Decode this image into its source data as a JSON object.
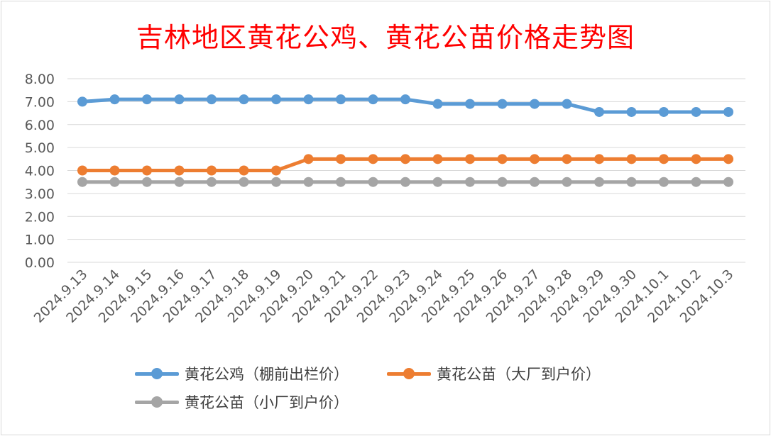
{
  "chart_data": {
    "type": "line",
    "title": "吉林地区黄花公鸡、黄花公苗价格走势图",
    "categories": [
      "2024.9.13",
      "2024.9.14",
      "2024.9.15",
      "2024.9.16",
      "2024.9.17",
      "2024.9.18",
      "2024.9.19",
      "2024.9.20",
      "2024.9.21",
      "2024.9.22",
      "2024.9.23",
      "2024.9.24",
      "2024.9.25",
      "2024.9.26",
      "2024.9.27",
      "2024.9.28",
      "2024.9.29",
      "2024.9.30",
      "2024.10.1",
      "2024.10.2",
      "2024.10.3"
    ],
    "yticks": [
      "0.00",
      "1.00",
      "2.00",
      "3.00",
      "4.00",
      "5.00",
      "6.00",
      "7.00",
      "8.00"
    ],
    "ylim": [
      0,
      8
    ],
    "grid": true,
    "legend_position": "bottom",
    "series": [
      {
        "name": "黄花公鸡（棚前出栏价）",
        "color": "#5b9bd5",
        "values": [
          7.0,
          7.1,
          7.1,
          7.1,
          7.1,
          7.1,
          7.1,
          7.1,
          7.1,
          7.1,
          7.1,
          6.9,
          6.9,
          6.9,
          6.9,
          6.9,
          6.55,
          6.55,
          6.55,
          6.55,
          6.55
        ]
      },
      {
        "name": "黄花公苗（大厂到户价）",
        "color": "#ed7d31",
        "values": [
          4.0,
          4.0,
          4.0,
          4.0,
          4.0,
          4.0,
          4.0,
          4.5,
          4.5,
          4.5,
          4.5,
          4.5,
          4.5,
          4.5,
          4.5,
          4.5,
          4.5,
          4.5,
          4.5,
          4.5,
          4.5
        ]
      },
      {
        "name": "黄花公苗（小厂到户价）",
        "color": "#a5a5a5",
        "values": [
          3.5,
          3.5,
          3.5,
          3.5,
          3.5,
          3.5,
          3.5,
          3.5,
          3.5,
          3.5,
          3.5,
          3.5,
          3.5,
          3.5,
          3.5,
          3.5,
          3.5,
          3.5,
          3.5,
          3.5,
          3.5
        ]
      }
    ]
  }
}
